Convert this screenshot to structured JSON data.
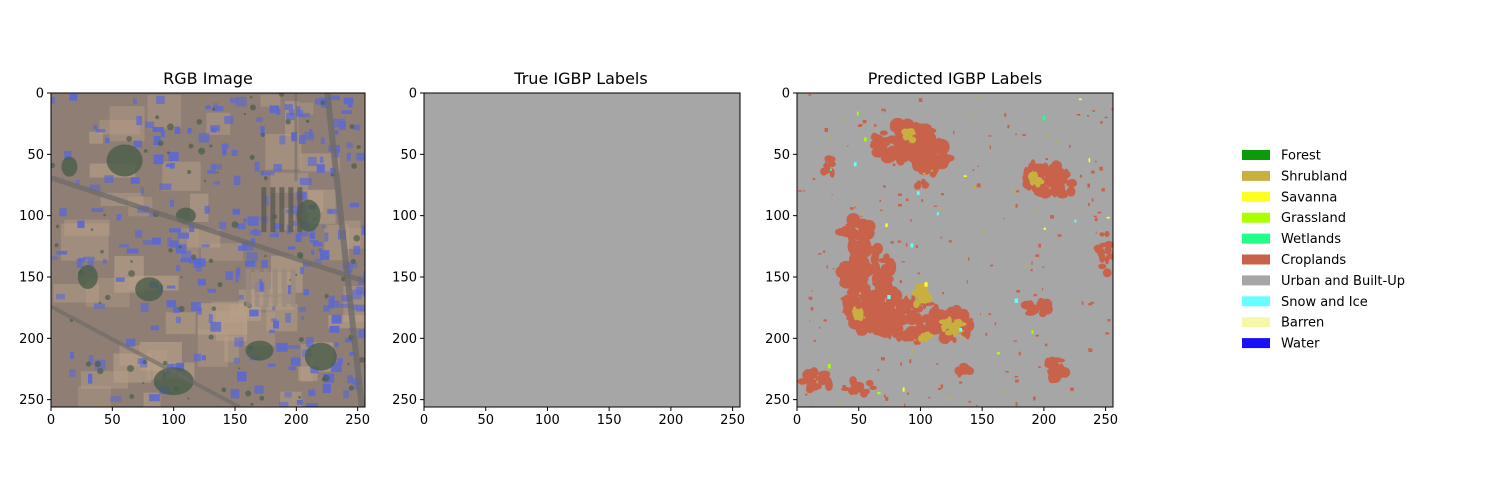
{
  "panels": [
    {
      "title": "RGB Image",
      "kind": "rgb",
      "xticks": [
        "0",
        "50",
        "100",
        "150",
        "200",
        "250"
      ],
      "yticks": [
        "0",
        "50",
        "100",
        "150",
        "200",
        "250"
      ]
    },
    {
      "title": "True IGBP Labels",
      "kind": "uniform",
      "fill": "#a6a6a6",
      "xticks": [
        "0",
        "50",
        "100",
        "150",
        "200",
        "250"
      ],
      "yticks": [
        "0",
        "50",
        "100",
        "150",
        "200",
        "250"
      ]
    },
    {
      "title": "Predicted IGBP Labels",
      "kind": "segmentation",
      "xticks": [
        "0",
        "50",
        "100",
        "150",
        "200",
        "250"
      ],
      "yticks": [
        "0",
        "50",
        "100",
        "150",
        "200",
        "250"
      ]
    }
  ],
  "image_extent": [
    0,
    256
  ],
  "legend": [
    {
      "label": "Forest",
      "color": "#0a9a0a"
    },
    {
      "label": "Shrubland",
      "color": "#c8b040"
    },
    {
      "label": "Savanna",
      "color": "#ffff22"
    },
    {
      "label": "Grassland",
      "color": "#aaff00"
    },
    {
      "label": "Wetlands",
      "color": "#22ff88"
    },
    {
      "label": "Croplands",
      "color": "#c8624a"
    },
    {
      "label": "Urban and Built-Up",
      "color": "#a6a6a6"
    },
    {
      "label": "Snow and Ice",
      "color": "#66ffff"
    },
    {
      "label": "Barren",
      "color": "#f7f7a8"
    },
    {
      "label": "Water",
      "color": "#1a10f8"
    }
  ],
  "colors": {
    "rgb_base": "#8e7e74",
    "rgb_roof": "#5b68d2",
    "rgb_vegetation": "#4a5e48",
    "rgb_bare": "#b8a088",
    "rgb_road": "#6c6a68"
  }
}
